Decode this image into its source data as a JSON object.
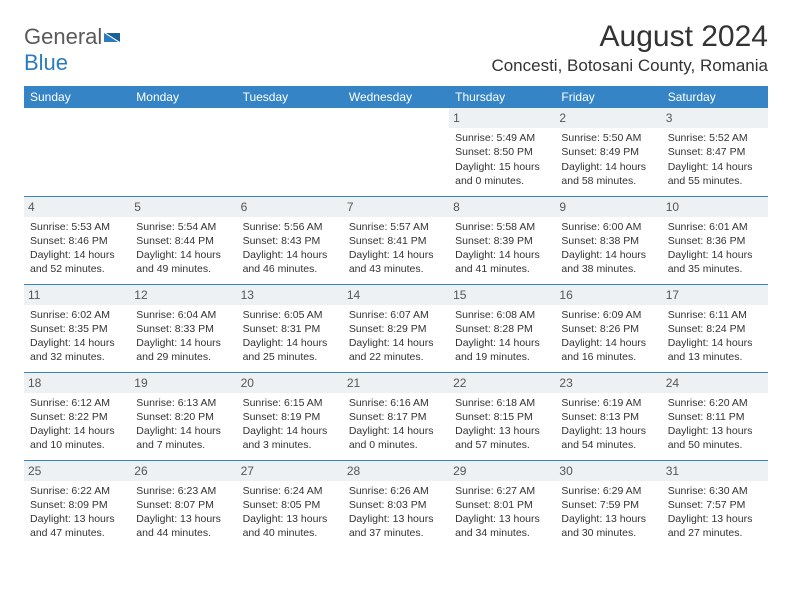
{
  "brand": {
    "part1": "General",
    "part2": "Blue"
  },
  "title": "August 2024",
  "location": "Concesti, Botosani County, Romania",
  "colors": {
    "header_bg": "#3585c6",
    "header_text": "#ffffff",
    "border": "#3585c6",
    "daynum_bg": "#eef1f4",
    "text": "#333333",
    "logo_gray": "#5a5a5a",
    "logo_blue": "#2b7bbf"
  },
  "day_headers": [
    "Sunday",
    "Monday",
    "Tuesday",
    "Wednesday",
    "Thursday",
    "Friday",
    "Saturday"
  ],
  "weeks": [
    [
      {
        "day": "",
        "sunrise": "",
        "sunset": "",
        "daylight": "",
        "empty": true
      },
      {
        "day": "",
        "sunrise": "",
        "sunset": "",
        "daylight": "",
        "empty": true
      },
      {
        "day": "",
        "sunrise": "",
        "sunset": "",
        "daylight": "",
        "empty": true
      },
      {
        "day": "",
        "sunrise": "",
        "sunset": "",
        "daylight": "",
        "empty": true
      },
      {
        "day": "1",
        "sunrise": "Sunrise: 5:49 AM",
        "sunset": "Sunset: 8:50 PM",
        "daylight": "Daylight: 15 hours and 0 minutes."
      },
      {
        "day": "2",
        "sunrise": "Sunrise: 5:50 AM",
        "sunset": "Sunset: 8:49 PM",
        "daylight": "Daylight: 14 hours and 58 minutes."
      },
      {
        "day": "3",
        "sunrise": "Sunrise: 5:52 AM",
        "sunset": "Sunset: 8:47 PM",
        "daylight": "Daylight: 14 hours and 55 minutes."
      }
    ],
    [
      {
        "day": "4",
        "sunrise": "Sunrise: 5:53 AM",
        "sunset": "Sunset: 8:46 PM",
        "daylight": "Daylight: 14 hours and 52 minutes."
      },
      {
        "day": "5",
        "sunrise": "Sunrise: 5:54 AM",
        "sunset": "Sunset: 8:44 PM",
        "daylight": "Daylight: 14 hours and 49 minutes."
      },
      {
        "day": "6",
        "sunrise": "Sunrise: 5:56 AM",
        "sunset": "Sunset: 8:43 PM",
        "daylight": "Daylight: 14 hours and 46 minutes."
      },
      {
        "day": "7",
        "sunrise": "Sunrise: 5:57 AM",
        "sunset": "Sunset: 8:41 PM",
        "daylight": "Daylight: 14 hours and 43 minutes."
      },
      {
        "day": "8",
        "sunrise": "Sunrise: 5:58 AM",
        "sunset": "Sunset: 8:39 PM",
        "daylight": "Daylight: 14 hours and 41 minutes."
      },
      {
        "day": "9",
        "sunrise": "Sunrise: 6:00 AM",
        "sunset": "Sunset: 8:38 PM",
        "daylight": "Daylight: 14 hours and 38 minutes."
      },
      {
        "day": "10",
        "sunrise": "Sunrise: 6:01 AM",
        "sunset": "Sunset: 8:36 PM",
        "daylight": "Daylight: 14 hours and 35 minutes."
      }
    ],
    [
      {
        "day": "11",
        "sunrise": "Sunrise: 6:02 AM",
        "sunset": "Sunset: 8:35 PM",
        "daylight": "Daylight: 14 hours and 32 minutes."
      },
      {
        "day": "12",
        "sunrise": "Sunrise: 6:04 AM",
        "sunset": "Sunset: 8:33 PM",
        "daylight": "Daylight: 14 hours and 29 minutes."
      },
      {
        "day": "13",
        "sunrise": "Sunrise: 6:05 AM",
        "sunset": "Sunset: 8:31 PM",
        "daylight": "Daylight: 14 hours and 25 minutes."
      },
      {
        "day": "14",
        "sunrise": "Sunrise: 6:07 AM",
        "sunset": "Sunset: 8:29 PM",
        "daylight": "Daylight: 14 hours and 22 minutes."
      },
      {
        "day": "15",
        "sunrise": "Sunrise: 6:08 AM",
        "sunset": "Sunset: 8:28 PM",
        "daylight": "Daylight: 14 hours and 19 minutes."
      },
      {
        "day": "16",
        "sunrise": "Sunrise: 6:09 AM",
        "sunset": "Sunset: 8:26 PM",
        "daylight": "Daylight: 14 hours and 16 minutes."
      },
      {
        "day": "17",
        "sunrise": "Sunrise: 6:11 AM",
        "sunset": "Sunset: 8:24 PM",
        "daylight": "Daylight: 14 hours and 13 minutes."
      }
    ],
    [
      {
        "day": "18",
        "sunrise": "Sunrise: 6:12 AM",
        "sunset": "Sunset: 8:22 PM",
        "daylight": "Daylight: 14 hours and 10 minutes."
      },
      {
        "day": "19",
        "sunrise": "Sunrise: 6:13 AM",
        "sunset": "Sunset: 8:20 PM",
        "daylight": "Daylight: 14 hours and 7 minutes."
      },
      {
        "day": "20",
        "sunrise": "Sunrise: 6:15 AM",
        "sunset": "Sunset: 8:19 PM",
        "daylight": "Daylight: 14 hours and 3 minutes."
      },
      {
        "day": "21",
        "sunrise": "Sunrise: 6:16 AM",
        "sunset": "Sunset: 8:17 PM",
        "daylight": "Daylight: 14 hours and 0 minutes."
      },
      {
        "day": "22",
        "sunrise": "Sunrise: 6:18 AM",
        "sunset": "Sunset: 8:15 PM",
        "daylight": "Daylight: 13 hours and 57 minutes."
      },
      {
        "day": "23",
        "sunrise": "Sunrise: 6:19 AM",
        "sunset": "Sunset: 8:13 PM",
        "daylight": "Daylight: 13 hours and 54 minutes."
      },
      {
        "day": "24",
        "sunrise": "Sunrise: 6:20 AM",
        "sunset": "Sunset: 8:11 PM",
        "daylight": "Daylight: 13 hours and 50 minutes."
      }
    ],
    [
      {
        "day": "25",
        "sunrise": "Sunrise: 6:22 AM",
        "sunset": "Sunset: 8:09 PM",
        "daylight": "Daylight: 13 hours and 47 minutes."
      },
      {
        "day": "26",
        "sunrise": "Sunrise: 6:23 AM",
        "sunset": "Sunset: 8:07 PM",
        "daylight": "Daylight: 13 hours and 44 minutes."
      },
      {
        "day": "27",
        "sunrise": "Sunrise: 6:24 AM",
        "sunset": "Sunset: 8:05 PM",
        "daylight": "Daylight: 13 hours and 40 minutes."
      },
      {
        "day": "28",
        "sunrise": "Sunrise: 6:26 AM",
        "sunset": "Sunset: 8:03 PM",
        "daylight": "Daylight: 13 hours and 37 minutes."
      },
      {
        "day": "29",
        "sunrise": "Sunrise: 6:27 AM",
        "sunset": "Sunset: 8:01 PM",
        "daylight": "Daylight: 13 hours and 34 minutes."
      },
      {
        "day": "30",
        "sunrise": "Sunrise: 6:29 AM",
        "sunset": "Sunset: 7:59 PM",
        "daylight": "Daylight: 13 hours and 30 minutes."
      },
      {
        "day": "31",
        "sunrise": "Sunrise: 6:30 AM",
        "sunset": "Sunset: 7:57 PM",
        "daylight": "Daylight: 13 hours and 27 minutes."
      }
    ]
  ]
}
